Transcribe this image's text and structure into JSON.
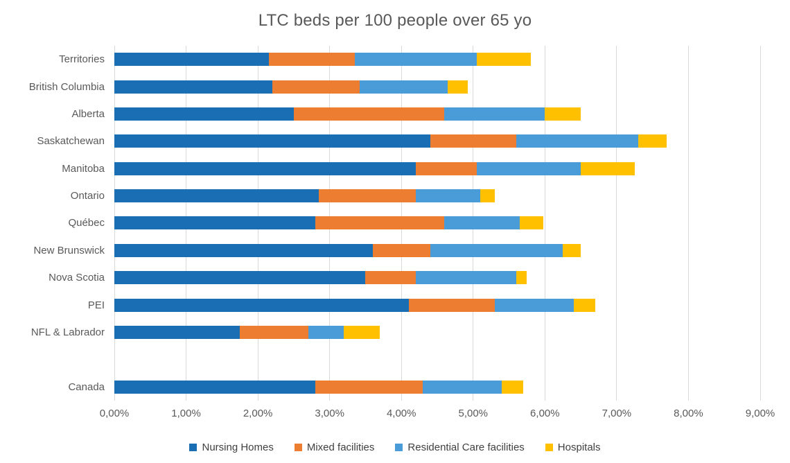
{
  "chart_data": {
    "type": "bar",
    "subtype": "horizontal-stacked",
    "title": "LTC beds per 100 people over 65 yo",
    "xlabel": "",
    "ylabel": "",
    "unit": "percent",
    "categories": [
      "Territories",
      "British Columbia",
      "Alberta",
      "Saskatchewan",
      "Manitoba",
      "Ontario",
      "Québec",
      "New Brunswick",
      "Nova Scotia",
      "PEI",
      "NFL & Labrador",
      "Canada"
    ],
    "spacer_after_index": 10,
    "series": [
      {
        "name": "Nursing Homes",
        "color": "#1a6fb4",
        "values": [
          2.15,
          2.2,
          2.5,
          4.4,
          4.2,
          2.85,
          2.8,
          3.6,
          3.5,
          4.1,
          1.75,
          2.8
        ]
      },
      {
        "name": "Mixed facilities",
        "color": "#ed7d31",
        "values": [
          1.2,
          1.22,
          2.1,
          1.2,
          0.85,
          1.35,
          1.8,
          0.8,
          0.7,
          1.2,
          0.95,
          1.5
        ]
      },
      {
        "name": "Residential Care facilities",
        "color": "#4a9cd9",
        "values": [
          1.7,
          1.23,
          1.4,
          1.7,
          1.45,
          0.9,
          1.05,
          1.85,
          1.4,
          1.1,
          0.5,
          1.1
        ]
      },
      {
        "name": "Hospitals",
        "color": "#ffc000",
        "values": [
          0.75,
          0.28,
          0.5,
          0.4,
          0.75,
          0.2,
          0.33,
          0.25,
          0.15,
          0.3,
          0.5,
          0.3
        ]
      }
    ],
    "x_axis": {
      "min": 0,
      "max": 9,
      "tick_step": 1,
      "tick_labels": [
        "0,00%",
        "1,00%",
        "2,00%",
        "3,00%",
        "4,00%",
        "5,00%",
        "6,00%",
        "7,00%",
        "8,00%",
        "9,00%"
      ]
    },
    "grid": true,
    "gridline_color": "#d9d9d9",
    "legend_position": "bottom",
    "text_color": "#595959"
  }
}
